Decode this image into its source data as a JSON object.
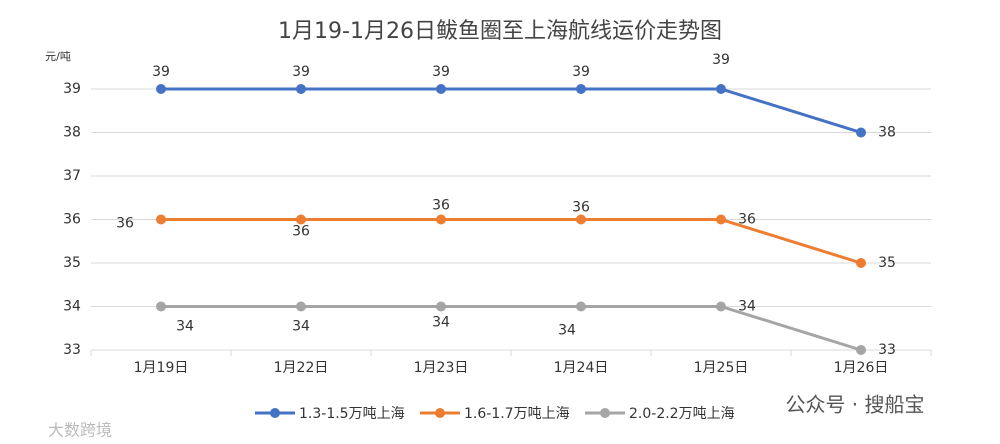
{
  "chart_data": {
    "type": "line",
    "title": "1月19-1月26日鲅鱼圈至上海航线运价走势图",
    "y_label": "元/吨",
    "categories": [
      "1月19日",
      "1月22日",
      "1月23日",
      "1月24日",
      "1月25日",
      "1月26日"
    ],
    "series": [
      {
        "name": "1.3-1.5万吨上海",
        "color": "#4472c4",
        "values": [
          39,
          39,
          39,
          39,
          39,
          38
        ]
      },
      {
        "name": "1.6-1.7万吨上海",
        "color": "#ed7d31",
        "values": [
          36,
          36,
          36,
          36,
          36,
          35
        ]
      },
      {
        "name": "2.0-2.2万吨上海",
        "color": "#a5a5a5",
        "values": [
          34,
          34,
          34,
          34,
          34,
          33
        ]
      }
    ],
    "ylim": [
      33,
      39
    ],
    "yticks": [
      33,
      34,
      35,
      36,
      37,
      38,
      39
    ],
    "grid": true,
    "legend": "bottom",
    "annotations": [
      "公众号 · 搜船宝",
      "大数跨境"
    ]
  }
}
